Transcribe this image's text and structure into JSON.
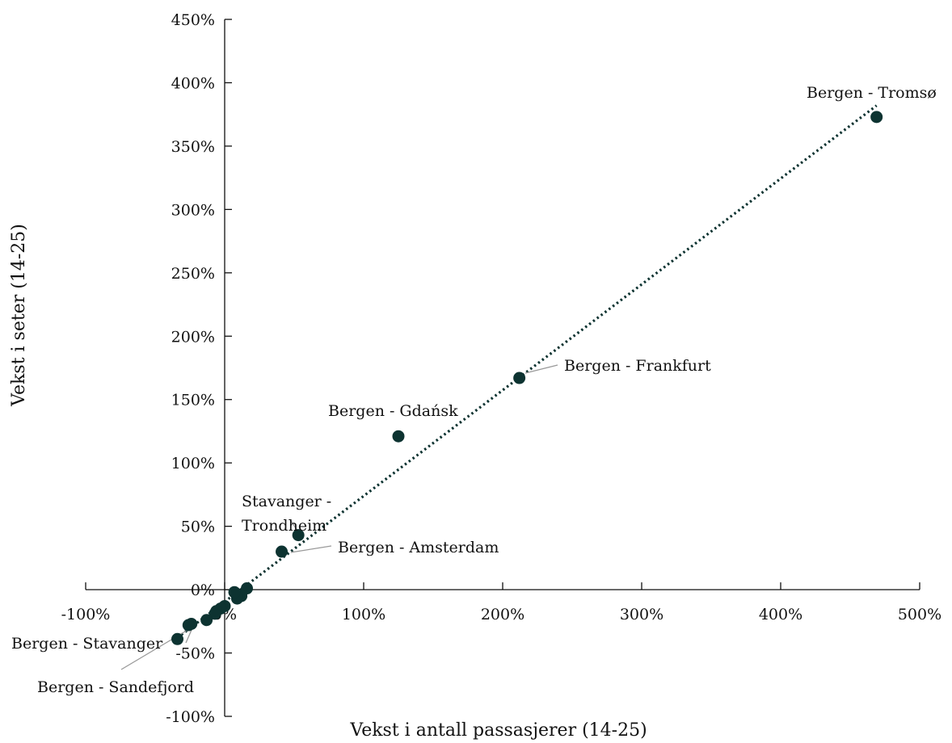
{
  "chart_data": {
    "type": "scatter",
    "title": "",
    "xlabel": "Vekst i antall passasjerer (14-25)",
    "ylabel": "Vekst i seter (14-25)",
    "xlim": [
      -100,
      500
    ],
    "ylim": [
      -100,
      450
    ],
    "x_ticks": [
      "-100%",
      "0%",
      "100%",
      "200%",
      "300%",
      "400%",
      "500%"
    ],
    "y_ticks": [
      "-100%",
      "-50%",
      "0%",
      "50%",
      "100%",
      "150%",
      "200%",
      "250%",
      "300%",
      "350%",
      "400%",
      "450%"
    ],
    "colors": {
      "points": "#0d3331",
      "trendline": "#0d3331",
      "axis": "#111111",
      "leader": "#999999"
    },
    "points": [
      {
        "x": 469,
        "y": 373
      },
      {
        "x": 212,
        "y": 167
      },
      {
        "x": 125,
        "y": 121
      },
      {
        "x": 53,
        "y": 43
      },
      {
        "x": 41,
        "y": 30
      },
      {
        "x": 16,
        "y": 1
      },
      {
        "x": 12,
        "y": -5
      },
      {
        "x": 8,
        "y": -3
      },
      {
        "x": 9,
        "y": -7
      },
      {
        "x": 7,
        "y": -2
      },
      {
        "x": 0,
        "y": -13
      },
      {
        "x": -3,
        "y": -15
      },
      {
        "x": -6,
        "y": -17
      },
      {
        "x": -7,
        "y": -19
      },
      {
        "x": -13,
        "y": -24
      },
      {
        "x": -24,
        "y": -27
      },
      {
        "x": -26,
        "y": -28
      },
      {
        "x": -34,
        "y": -39
      }
    ],
    "trendline": {
      "from": [
        -34,
        -38
      ],
      "to": [
        469,
        382
      ]
    },
    "annotations": [
      {
        "label": "Bergen - Tromsø",
        "x": 469,
        "y": 373
      },
      {
        "label": "Bergen - Frankfurt",
        "x": 212,
        "y": 167
      },
      {
        "label": "Bergen - Gdańsk",
        "x": 125,
        "y": 121
      },
      {
        "label": "Stavanger -",
        "label2": "Trondheim",
        "x": 53,
        "y": 43
      },
      {
        "label": "Bergen - Amsterdam",
        "x": 41,
        "y": 30
      },
      {
        "label": "Bergen - Stavanger",
        "x": -26,
        "y": -28
      },
      {
        "label": "Bergen - Sandefjord",
        "x": -24,
        "y": -27
      }
    ]
  }
}
